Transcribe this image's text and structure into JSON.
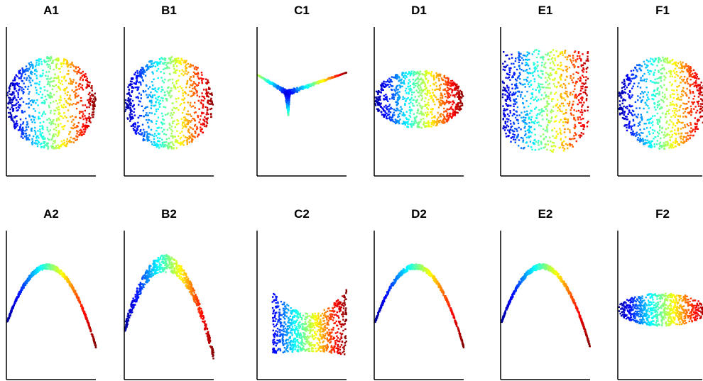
{
  "figure": {
    "rows": 2,
    "cols": 6
  },
  "colormap": [
    "#00008f",
    "#0000ff",
    "#0080ff",
    "#00ffff",
    "#80ff80",
    "#ffff00",
    "#ff8000",
    "#ff0000",
    "#800000"
  ],
  "chart_data": [
    {
      "panel": "A1",
      "title": "A1",
      "type": "scatter",
      "shape": "disk",
      "axes_visible": [
        "left",
        "bottom"
      ],
      "ticks": false,
      "color_by": "x",
      "points": 900
    },
    {
      "panel": "B1",
      "title": "B1",
      "type": "scatter",
      "shape": "disk",
      "axes_visible": [
        "left",
        "bottom"
      ],
      "ticks": false,
      "color_by": "x",
      "points": 900
    },
    {
      "panel": "C1",
      "title": "C1",
      "type": "scatter",
      "shape": "triangle",
      "axes_visible": [
        "left",
        "bottom"
      ],
      "ticks": false,
      "color_by": "x",
      "points": 900
    },
    {
      "panel": "D1",
      "title": "D1",
      "type": "scatter",
      "shape": "flat-disk",
      "axes_visible": [
        "left",
        "bottom"
      ],
      "ticks": false,
      "color_by": "x",
      "points": 900
    },
    {
      "panel": "E1",
      "title": "E1",
      "type": "scatter",
      "shape": "bowl",
      "axes_visible": [
        "left",
        "bottom"
      ],
      "ticks": false,
      "color_by": "x",
      "points": 900
    },
    {
      "panel": "F1",
      "title": "F1",
      "type": "scatter",
      "shape": "disk",
      "axes_visible": [
        "left",
        "bottom"
      ],
      "ticks": false,
      "color_by": "x",
      "points": 900
    },
    {
      "panel": "A2",
      "title": "A2",
      "type": "scatter",
      "shape": "parabola",
      "axes_visible": [
        "left",
        "bottom"
      ],
      "ticks": false,
      "color_by": "x",
      "points": 700
    },
    {
      "panel": "B2",
      "title": "B2",
      "type": "scatter",
      "shape": "wide-parabola",
      "axes_visible": [
        "left",
        "bottom"
      ],
      "ticks": false,
      "color_by": "x",
      "points": 700
    },
    {
      "panel": "C2",
      "title": "C2",
      "type": "scatter",
      "shape": "saddle",
      "axes_visible": [
        "left",
        "bottom"
      ],
      "ticks": false,
      "color_by": "x",
      "points": 900
    },
    {
      "panel": "D2",
      "title": "D2",
      "type": "scatter",
      "shape": "parabola",
      "axes_visible": [
        "left",
        "bottom"
      ],
      "ticks": false,
      "color_by": "x",
      "points": 700
    },
    {
      "panel": "E2",
      "title": "E2",
      "type": "scatter",
      "shape": "parabola",
      "axes_visible": [
        "left",
        "bottom"
      ],
      "ticks": false,
      "color_by": "x",
      "points": 700
    },
    {
      "panel": "F2",
      "title": "F2",
      "type": "scatter",
      "shape": "ellipse",
      "axes_visible": [
        "left",
        "bottom"
      ],
      "ticks": false,
      "color_by": "x",
      "points": 800
    }
  ]
}
